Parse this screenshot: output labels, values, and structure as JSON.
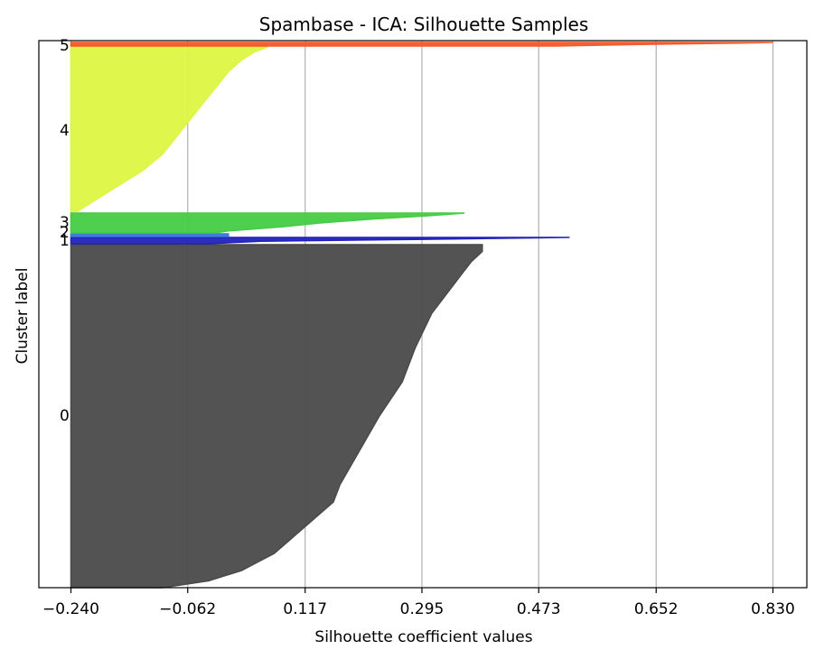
{
  "chart_data": {
    "type": "area",
    "title": "Spambase - ICA: Silhouette Samples",
    "xlabel": "Silhouette coefficient values",
    "ylabel": "Cluster label",
    "xlim": [
      -0.24,
      0.86
    ],
    "xticks": [
      "-0.240",
      "-0.062",
      "0.117",
      "0.295",
      "0.473",
      "0.652",
      "0.830"
    ],
    "xtick_values": [
      -0.24,
      -0.062,
      0.117,
      0.295,
      0.473,
      0.652,
      0.83
    ],
    "grid": "vertical",
    "legend": "none",
    "clusters": [
      {
        "label": "0",
        "color": "#4a4a4a",
        "profile": [
          [
            0.0,
            0.387
          ],
          [
            0.02,
            0.387
          ],
          [
            0.05,
            0.37
          ],
          [
            0.1,
            0.35
          ],
          [
            0.2,
            0.31
          ],
          [
            0.3,
            0.285
          ],
          [
            0.4,
            0.265
          ],
          [
            0.5,
            0.23
          ],
          [
            0.6,
            0.2
          ],
          [
            0.7,
            0.17
          ],
          [
            0.75,
            0.16
          ],
          [
            0.8,
            0.13
          ],
          [
            0.85,
            0.1
          ],
          [
            0.9,
            0.07
          ],
          [
            0.95,
            0.02
          ],
          [
            0.98,
            -0.03
          ],
          [
            1.0,
            -0.1
          ]
        ]
      },
      {
        "label": "1",
        "color": "#2222bb",
        "profile": [
          [
            0.0,
            0.52
          ],
          [
            0.3,
            0.3
          ],
          [
            0.6,
            0.05
          ],
          [
            1.0,
            -0.03
          ]
        ]
      },
      {
        "label": "2",
        "color": "#3a78d8",
        "profile": [
          [
            0.0,
            -0.0
          ],
          [
            1.0,
            -0.0
          ]
        ]
      },
      {
        "label": "3",
        "color": "#44cc44",
        "profile": [
          [
            0.0,
            0.36
          ],
          [
            0.05,
            0.34
          ],
          [
            0.15,
            0.3
          ],
          [
            0.3,
            0.22
          ],
          [
            0.5,
            0.14
          ],
          [
            0.7,
            0.08
          ],
          [
            0.9,
            0.0
          ],
          [
            1.0,
            -0.02
          ]
        ]
      },
      {
        "label": "4",
        "color": "#ddf542",
        "profile": [
          [
            0.0,
            0.06
          ],
          [
            0.03,
            0.04
          ],
          [
            0.08,
            0.02
          ],
          [
            0.15,
            0.0
          ],
          [
            0.25,
            -0.02
          ],
          [
            0.35,
            -0.04
          ],
          [
            0.45,
            -0.06
          ],
          [
            0.55,
            -0.08
          ],
          [
            0.65,
            -0.1
          ],
          [
            0.75,
            -0.13
          ],
          [
            0.85,
            -0.17
          ],
          [
            0.95,
            -0.21
          ],
          [
            1.0,
            -0.23
          ]
        ]
      },
      {
        "label": "5",
        "color": "#f25a2a",
        "profile": [
          [
            0.0,
            0.83
          ],
          [
            0.2,
            0.78
          ],
          [
            0.5,
            0.65
          ],
          [
            1.0,
            0.5
          ]
        ]
      }
    ]
  }
}
